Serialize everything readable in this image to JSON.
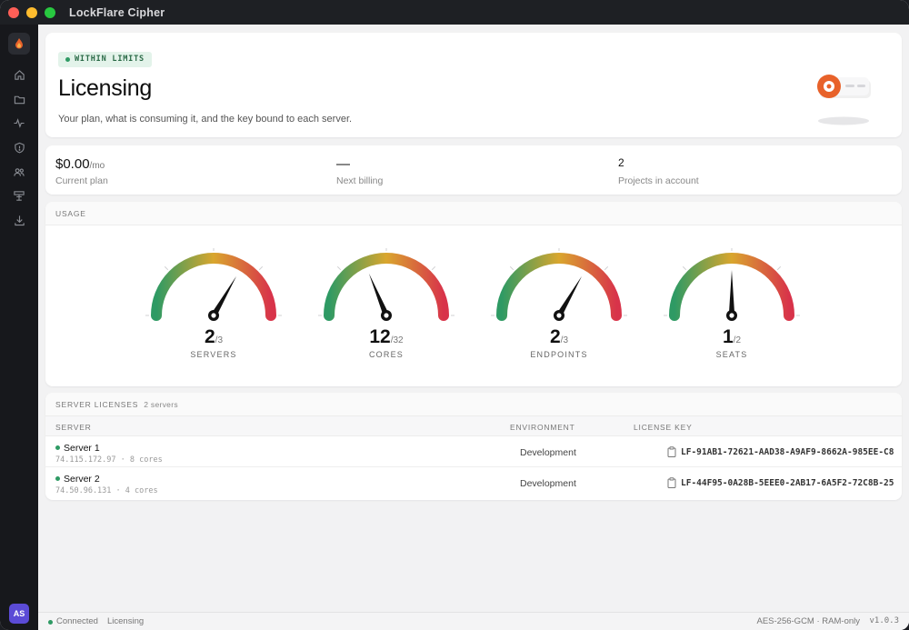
{
  "window": {
    "title": "LockFlare Cipher"
  },
  "sidebar": {
    "brand_icon": "flame-icon",
    "items": [
      {
        "icon": "home-icon"
      },
      {
        "icon": "folder-icon"
      },
      {
        "icon": "activity-icon"
      },
      {
        "icon": "shield-icon"
      },
      {
        "icon": "users-icon"
      },
      {
        "icon": "server-icon"
      },
      {
        "icon": "download-icon"
      }
    ],
    "avatar": "AS"
  },
  "hero": {
    "badge": "WITHIN LIMITS",
    "title": "Licensing",
    "subtitle": "Your plan, what is consuming it, and the key bound to each server."
  },
  "stats": [
    {
      "value": "$0.00",
      "unit": "/mo",
      "label": "Current plan"
    },
    {
      "value": "—",
      "unit": "",
      "label": "Next billing"
    },
    {
      "value": "2",
      "unit": "",
      "label": "Projects in account"
    }
  ],
  "usage": {
    "title": "USAGE",
    "gauges": [
      {
        "label": "SERVERS",
        "used": "2",
        "total": "/3",
        "fraction": 0.667
      },
      {
        "label": "CORES",
        "used": "12",
        "total": "/32",
        "fraction": 0.375
      },
      {
        "label": "ENDPOINTS",
        "used": "2",
        "total": "/3",
        "fraction": 0.667
      },
      {
        "label": "SEATS",
        "used": "1",
        "total": "/2",
        "fraction": 0.5
      }
    ]
  },
  "licenses": {
    "title": "SERVER LICENSES",
    "count": "2 servers",
    "columns": {
      "server": "SERVER",
      "environment": "ENVIRONMENT",
      "key": "LICENSE KEY"
    },
    "rows": [
      {
        "name": "Server 1",
        "meta": "74.115.172.97 · 8 cores",
        "environment": "Development",
        "key": "LF-91AB1-72621-AAD38-A9AF9-8662A-985EE-C8"
      },
      {
        "name": "Server 2",
        "meta": "74.50.96.131 · 4 cores",
        "environment": "Development",
        "key": "LF-44F95-0A28B-5EEE0-2AB17-6A5F2-72C8B-25"
      }
    ]
  },
  "statusbar": {
    "connection": "Connected",
    "page": "Licensing",
    "cipher": "AES-256-GCM · RAM-only",
    "version": "v1.0.3"
  },
  "colors": {
    "accent": "#e8622a",
    "ok": "#2e9a64",
    "avatar": "#5b4bd6"
  }
}
